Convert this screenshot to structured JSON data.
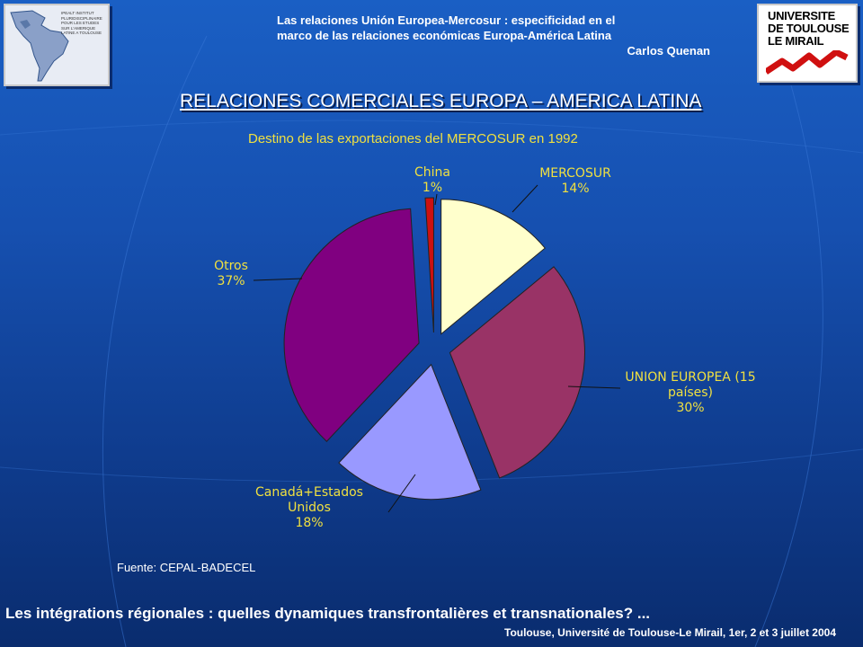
{
  "header": {
    "title_line1": "Las relaciones Unión Europea-Mercosur : especificidad en el",
    "title_line2": "marco de las relaciones económicas Europa-América Latina",
    "author": "Carlos Quenan"
  },
  "logos": {
    "left_text": "IPEALT INSTITUT PLURIDISCIPLINAIRE POUR LES ETUDES SUR L'AMERIQUE LATINE A TOULOUSE",
    "right_line1": "UNIVERSITE",
    "right_line2": "DE TOULOUSE",
    "right_line3": "LE MIRAIL"
  },
  "main_title": "RELACIONES COMERCIALES EUROPA – AMERICA LATINA",
  "source": "Fuente: CEPAL-BADECEL",
  "footer": {
    "line1": "Les intégrations régionales : quelles dynamiques transfrontalières et transnationales? ...",
    "line2": "Toulouse, Université de Toulouse-Le Mirail, 1er, 2 et 3 juillet 2004"
  },
  "colors": {
    "title_yellow": "#f0e040",
    "background": "#1650b0"
  },
  "chart_data": {
    "type": "pie",
    "title": "Destino de las exportaciones del MERCOSUR en 1992",
    "exploded": true,
    "slices": [
      {
        "label_lines": [
          "MERCOSUR",
          "14%"
        ],
        "value": 14,
        "color": "#ffffcc"
      },
      {
        "label_lines": [
          "UNION EUROPEA (15",
          "países)",
          "30%"
        ],
        "value": 30,
        "color": "#993366"
      },
      {
        "label_lines": [
          "Canadá+Estados",
          "Unidos",
          "18%"
        ],
        "value": 18,
        "color": "#9999ff"
      },
      {
        "label_lines": [
          "Otros",
          "37%"
        ],
        "value": 37,
        "color": "#800080"
      },
      {
        "label_lines": [
          "China",
          "1%"
        ],
        "value": 1,
        "color": "#cc1111"
      }
    ]
  }
}
